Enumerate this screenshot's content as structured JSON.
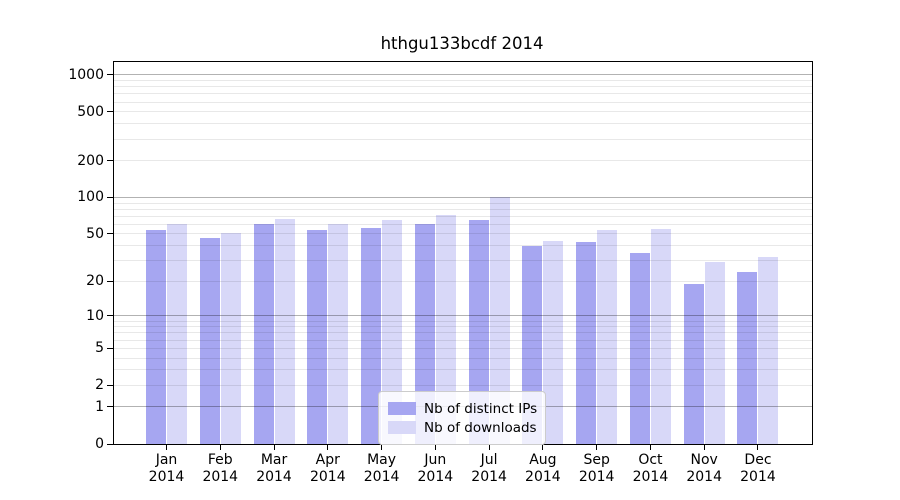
{
  "chart_data": {
    "type": "bar",
    "title": "hthgu133bcdf 2014",
    "scale": "log1p",
    "grid": true,
    "legend_position": "lower-center-inside",
    "ylim": [
      0,
      1000
    ],
    "y_ticks": [
      1000,
      500,
      200,
      100,
      50,
      20,
      10,
      5,
      2,
      1,
      0
    ],
    "categories": [
      {
        "month": "Jan",
        "year": "2014"
      },
      {
        "month": "Feb",
        "year": "2014"
      },
      {
        "month": "Mar",
        "year": "2014"
      },
      {
        "month": "Apr",
        "year": "2014"
      },
      {
        "month": "May",
        "year": "2014"
      },
      {
        "month": "Jun",
        "year": "2014"
      },
      {
        "month": "Jul",
        "year": "2014"
      },
      {
        "month": "Aug",
        "year": "2014"
      },
      {
        "month": "Sep",
        "year": "2014"
      },
      {
        "month": "Oct",
        "year": "2014"
      },
      {
        "month": "Nov",
        "year": "2014"
      },
      {
        "month": "Dec",
        "year": "2014"
      }
    ],
    "series": [
      {
        "name": "Nb of distinct IPs",
        "color": "#a6a6f1",
        "values": [
          54,
          46,
          61,
          54,
          56,
          60,
          65,
          40,
          43,
          35,
          19,
          24
        ]
      },
      {
        "name": "Nb of downloads",
        "color": "#d8d8f8",
        "values": [
          61,
          51,
          67,
          61,
          65,
          72,
          101,
          44,
          54,
          55,
          29,
          32
        ]
      }
    ],
    "colors": {
      "spine": "#000000",
      "grid_major": "rgba(0,0,0,0.30)",
      "grid_minor": "rgba(0,0,0,0.09)",
      "legend_border": "#cccccc"
    }
  }
}
